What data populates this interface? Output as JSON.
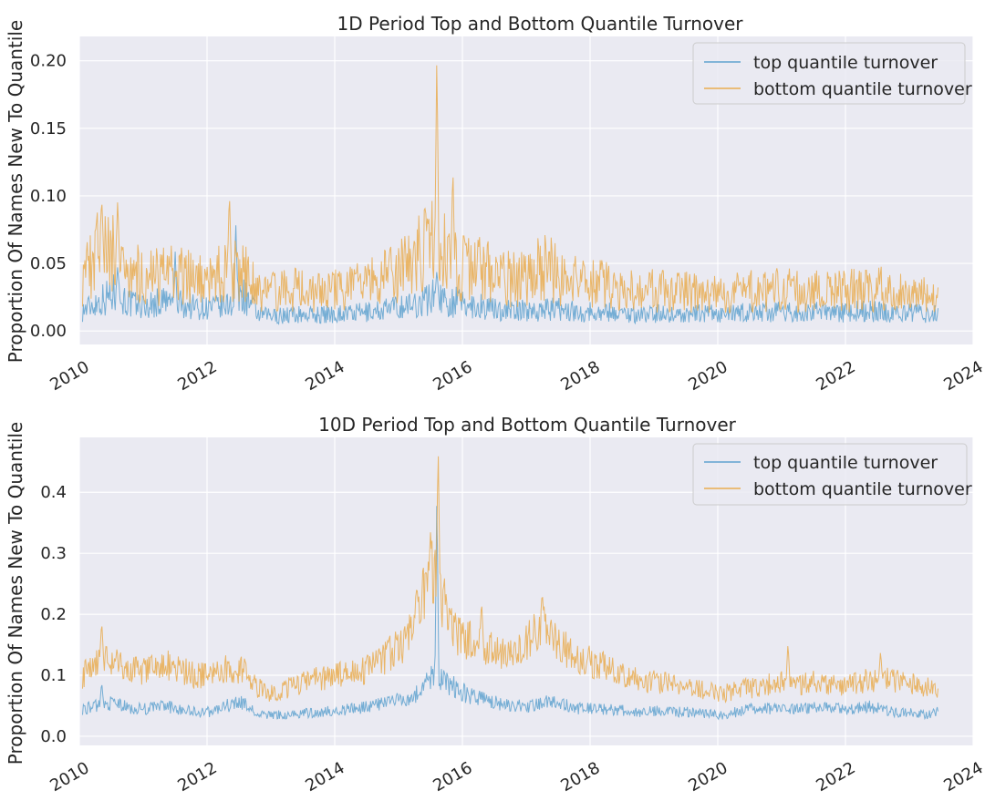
{
  "legend_colors": {
    "top": "#5fa2cf",
    "bottom": "#e9ac4f"
  },
  "chart_data": [
    {
      "type": "line",
      "title": "1D Period Top and Bottom Quantile Turnover",
      "ylabel": "Proportion Of Names New To Quantile",
      "xlabel": "",
      "xlim": [
        2010,
        2024
      ],
      "ylim": [
        -0.01,
        0.218
      ],
      "yticks": [
        "0.00",
        "0.05",
        "0.10",
        "0.15",
        "0.20"
      ],
      "xticks": [
        "2010",
        "2012",
        "2014",
        "2016",
        "2018",
        "2020",
        "2022",
        "2024"
      ],
      "grid": true,
      "legend_position": "top-right",
      "x": [
        2010.05,
        2010.3,
        2010.55,
        2010.8,
        2011.05,
        2011.3,
        2011.55,
        2011.8,
        2012.05,
        2012.3,
        2012.55,
        2012.8,
        2013.05,
        2013.3,
        2013.55,
        2013.8,
        2014.05,
        2014.3,
        2014.55,
        2014.8,
        2015.05,
        2015.3,
        2015.55,
        2015.8,
        2016.05,
        2016.3,
        2016.55,
        2016.8,
        2017.05,
        2017.3,
        2017.55,
        2017.8,
        2018.05,
        2018.3,
        2018.55,
        2018.8,
        2019.05,
        2019.3,
        2019.55,
        2019.8,
        2020.05,
        2020.3,
        2020.55,
        2020.8,
        2021.05,
        2021.3,
        2021.55,
        2021.8,
        2022.05,
        2022.3,
        2022.55,
        2022.8,
        2023.05,
        2023.3,
        2023.45
      ],
      "series": [
        {
          "name": "top quantile turnover",
          "color": "#5fa2cf",
          "values": [
            0.015,
            0.022,
            0.028,
            0.02,
            0.018,
            0.022,
            0.02,
            0.018,
            0.017,
            0.018,
            0.028,
            0.012,
            0.011,
            0.012,
            0.012,
            0.012,
            0.013,
            0.013,
            0.014,
            0.016,
            0.018,
            0.02,
            0.026,
            0.022,
            0.02,
            0.018,
            0.016,
            0.015,
            0.015,
            0.016,
            0.016,
            0.014,
            0.014,
            0.014,
            0.013,
            0.012,
            0.013,
            0.012,
            0.012,
            0.013,
            0.012,
            0.013,
            0.014,
            0.014,
            0.014,
            0.013,
            0.014,
            0.013,
            0.014,
            0.015,
            0.014,
            0.013,
            0.013,
            0.013,
            0.012
          ],
          "spikes": [
            [
              2010.6,
              0.048
            ],
            [
              2011.5,
              0.06
            ],
            [
              2012.45,
              0.082
            ],
            [
              2015.6,
              0.045
            ]
          ]
        },
        {
          "name": "bottom quantile turnover",
          "color": "#e9ac4f",
          "values": [
            0.04,
            0.06,
            0.055,
            0.045,
            0.04,
            0.04,
            0.042,
            0.038,
            0.036,
            0.045,
            0.045,
            0.028,
            0.028,
            0.03,
            0.03,
            0.03,
            0.03,
            0.032,
            0.035,
            0.04,
            0.045,
            0.055,
            0.07,
            0.05,
            0.045,
            0.045,
            0.04,
            0.038,
            0.042,
            0.05,
            0.04,
            0.036,
            0.035,
            0.034,
            0.032,
            0.03,
            0.03,
            0.03,
            0.03,
            0.028,
            0.028,
            0.028,
            0.03,
            0.03,
            0.03,
            0.03,
            0.03,
            0.028,
            0.03,
            0.03,
            0.032,
            0.028,
            0.026,
            0.026,
            0.025
          ],
          "spikes": [
            [
              2010.35,
              0.1
            ],
            [
              2010.6,
              0.097
            ],
            [
              2012.35,
              0.105
            ],
            [
              2015.6,
              0.207
            ],
            [
              2015.85,
              0.123
            ]
          ]
        }
      ]
    },
    {
      "type": "line",
      "title": "10D Period Top and Bottom Quantile Turnover",
      "ylabel": "Proportion Of Names New To Quantile",
      "xlabel": "",
      "xlim": [
        2010,
        2024
      ],
      "ylim": [
        -0.015,
        0.49
      ],
      "yticks": [
        "0.0",
        "0.1",
        "0.2",
        "0.3",
        "0.4"
      ],
      "xticks": [
        "2010",
        "2012",
        "2014",
        "2016",
        "2018",
        "2020",
        "2022",
        "2024"
      ],
      "grid": true,
      "legend_position": "top-right",
      "x": [
        2010.05,
        2010.3,
        2010.55,
        2010.8,
        2011.05,
        2011.3,
        2011.55,
        2011.8,
        2012.05,
        2012.3,
        2012.55,
        2012.8,
        2013.05,
        2013.3,
        2013.55,
        2013.8,
        2014.05,
        2014.3,
        2014.55,
        2014.8,
        2015.05,
        2015.3,
        2015.55,
        2015.8,
        2016.05,
        2016.3,
        2016.55,
        2016.8,
        2017.05,
        2017.3,
        2017.55,
        2017.8,
        2018.05,
        2018.3,
        2018.55,
        2018.8,
        2019.05,
        2019.3,
        2019.55,
        2019.8,
        2020.05,
        2020.3,
        2020.55,
        2020.8,
        2021.05,
        2021.3,
        2021.55,
        2021.8,
        2022.05,
        2022.3,
        2022.55,
        2022.8,
        2023.05,
        2023.3,
        2023.45
      ],
      "series": [
        {
          "name": "top quantile turnover",
          "color": "#5fa2cf",
          "values": [
            0.045,
            0.05,
            0.055,
            0.045,
            0.045,
            0.05,
            0.045,
            0.04,
            0.04,
            0.05,
            0.055,
            0.035,
            0.035,
            0.035,
            0.038,
            0.04,
            0.042,
            0.045,
            0.05,
            0.055,
            0.06,
            0.07,
            0.1,
            0.085,
            0.07,
            0.06,
            0.055,
            0.05,
            0.05,
            0.055,
            0.055,
            0.045,
            0.045,
            0.045,
            0.042,
            0.04,
            0.042,
            0.04,
            0.04,
            0.038,
            0.035,
            0.04,
            0.045,
            0.045,
            0.045,
            0.045,
            0.048,
            0.045,
            0.045,
            0.05,
            0.045,
            0.04,
            0.038,
            0.035,
            0.04
          ],
          "spikes": [
            [
              2010.35,
              0.09
            ],
            [
              2015.6,
              0.4
            ]
          ]
        },
        {
          "name": "bottom quantile turnover",
          "color": "#e9ac4f",
          "values": [
            0.1,
            0.13,
            0.12,
            0.11,
            0.105,
            0.12,
            0.11,
            0.1,
            0.1,
            0.11,
            0.11,
            0.08,
            0.07,
            0.08,
            0.09,
            0.095,
            0.1,
            0.105,
            0.11,
            0.13,
            0.15,
            0.2,
            0.28,
            0.18,
            0.16,
            0.15,
            0.14,
            0.13,
            0.16,
            0.19,
            0.15,
            0.13,
            0.12,
            0.11,
            0.1,
            0.09,
            0.09,
            0.085,
            0.08,
            0.075,
            0.07,
            0.075,
            0.08,
            0.085,
            0.09,
            0.085,
            0.09,
            0.085,
            0.085,
            0.09,
            0.095,
            0.09,
            0.085,
            0.08,
            0.08
          ],
          "spikes": [
            [
              2010.35,
              0.19
            ],
            [
              2015.5,
              0.335
            ],
            [
              2015.62,
              0.475
            ],
            [
              2016.3,
              0.225
            ],
            [
              2017.25,
              0.238
            ],
            [
              2021.1,
              0.155
            ],
            [
              2022.55,
              0.14
            ]
          ]
        }
      ]
    }
  ]
}
